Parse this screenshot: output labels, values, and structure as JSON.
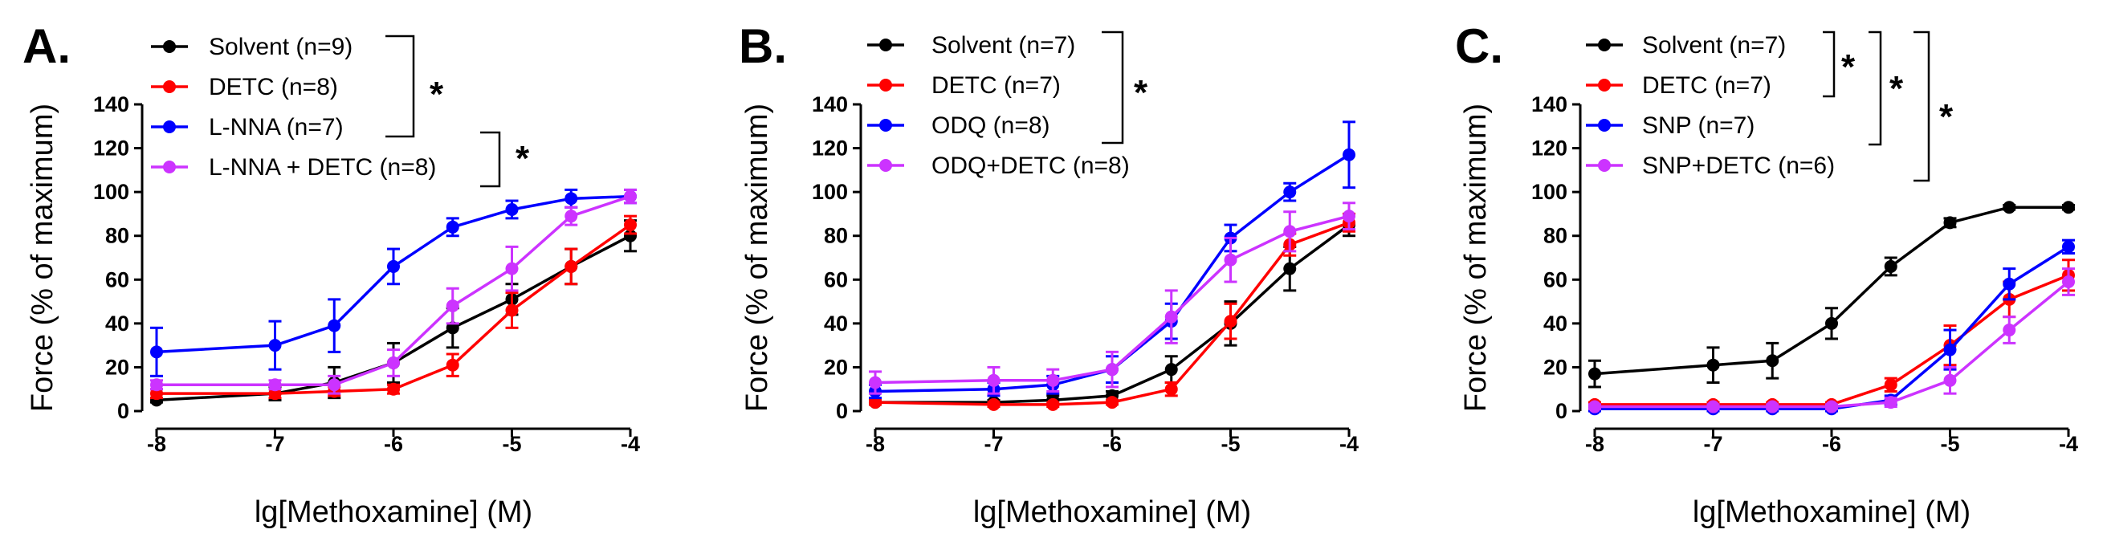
{
  "chart_data": [
    {
      "type": "line",
      "panel": "A.",
      "xlabel": "lg[Methoxamine] (M)",
      "ylabel": "Force (% of maximum)",
      "xlim": [
        -8,
        -4
      ],
      "ylim": [
        0,
        140
      ],
      "xticks": [
        "-8",
        "-7",
        "-6",
        "-5",
        "-4"
      ],
      "yticks": [
        "0",
        "20",
        "40",
        "60",
        "80",
        "100",
        "120",
        "140"
      ],
      "x": [
        -8,
        -7,
        -6.5,
        -6,
        -5.5,
        -5,
        -4.5,
        -4
      ],
      "series": [
        {
          "name": "Solvent (n=9)",
          "color": "#000000",
          "values": [
            5,
            8,
            13,
            22,
            38,
            51,
            66,
            80
          ],
          "errors": [
            1,
            3,
            7,
            9,
            9,
            7,
            8,
            7
          ]
        },
        {
          "name": "DETC (n=8)",
          "color": "#ff0000",
          "values": [
            8,
            8,
            9,
            10,
            21,
            46,
            66,
            85
          ],
          "errors": [
            2,
            2,
            2,
            2,
            5,
            8,
            8,
            4
          ]
        },
        {
          "name": "L-NNA  (n=7)",
          "color": "#0000ff",
          "values": [
            27,
            30,
            39,
            66,
            84,
            92,
            97,
            98
          ],
          "errors": [
            11,
            11,
            12,
            8,
            4,
            4,
            4,
            3
          ]
        },
        {
          "name": "L-NNA + DETC (n=8)",
          "color": "#cc33ff",
          "values": [
            12,
            12,
            12,
            22,
            48,
            65,
            89,
            98
          ],
          "errors": [
            2,
            2,
            4,
            6,
            8,
            10,
            4,
            3
          ]
        }
      ],
      "significance": [
        "*",
        "*"
      ]
    },
    {
      "type": "line",
      "panel": "B.",
      "xlabel": "lg[Methoxamine] (M)",
      "ylabel": "Force (% of maximum)",
      "xlim": [
        -8,
        -4
      ],
      "ylim": [
        0,
        140
      ],
      "xticks": [
        "-8",
        "-7",
        "-6",
        "-5",
        "-4"
      ],
      "yticks": [
        "0",
        "20",
        "40",
        "60",
        "80",
        "100",
        "120",
        "140"
      ],
      "x": [
        -8,
        -7,
        -6.5,
        -6,
        -5.5,
        -5,
        -4.5,
        -4
      ],
      "series": [
        {
          "name": "Solvent (n=7)",
          "color": "#000000",
          "values": [
            4,
            4,
            5,
            7,
            19,
            40,
            65,
            85
          ],
          "errors": [
            1,
            1,
            2,
            2,
            6,
            10,
            10,
            5
          ]
        },
        {
          "name": "DETC (n=7)",
          "color": "#ff0000",
          "values": [
            4,
            3,
            3,
            4,
            10,
            41,
            76,
            86
          ],
          "errors": [
            1,
            1,
            1,
            1,
            3,
            8,
            5,
            4
          ]
        },
        {
          "name": "ODQ (n=8)",
          "color": "#0000ff",
          "values": [
            9,
            10,
            12,
            19,
            41,
            79,
            100,
            117
          ],
          "errors": [
            3,
            3,
            4,
            6,
            8,
            6,
            4,
            15
          ]
        },
        {
          "name": "ODQ+DETC (n=8)",
          "color": "#cc33ff",
          "values": [
            13,
            14,
            14,
            19,
            43,
            69,
            82,
            89
          ],
          "errors": [
            5,
            6,
            5,
            8,
            12,
            10,
            9,
            6
          ]
        }
      ],
      "significance": [
        "*"
      ]
    },
    {
      "type": "line",
      "panel": "C.",
      "xlabel": "lg[Methoxamine] (M)",
      "ylabel": "Force (% of maximum)",
      "xlim": [
        -8,
        -4
      ],
      "ylim": [
        0,
        140
      ],
      "xticks": [
        "-8",
        "-7",
        "-6",
        "-5",
        "-4"
      ],
      "yticks": [
        "0",
        "20",
        "40",
        "60",
        "80",
        "100",
        "120",
        "140"
      ],
      "x": [
        -8,
        -7,
        -6.5,
        -6,
        -5.5,
        -5,
        -4.5,
        -4
      ],
      "series": [
        {
          "name": "Solvent (n=7)",
          "color": "#000000",
          "values": [
            17,
            21,
            23,
            40,
            66,
            86,
            93,
            93
          ],
          "errors": [
            6,
            8,
            8,
            7,
            4,
            2,
            1,
            1
          ]
        },
        {
          "name": "DETC (n=7)",
          "color": "#ff0000",
          "values": [
            3,
            3,
            3,
            3,
            12,
            30,
            51,
            62
          ],
          "errors": [
            1,
            1,
            1,
            1,
            3,
            9,
            8,
            7
          ]
        },
        {
          "name": "SNP (n=7)",
          "color": "#0000ff",
          "values": [
            1,
            1,
            1,
            1,
            5,
            28,
            58,
            75
          ],
          "errors": [
            1,
            1,
            1,
            1,
            2,
            9,
            7,
            3
          ]
        },
        {
          "name": "SNP+DETC (n=6)",
          "color": "#cc33ff",
          "values": [
            2,
            2,
            2,
            2,
            4,
            14,
            37,
            59
          ],
          "errors": [
            1,
            1,
            1,
            1,
            2,
            6,
            6,
            6
          ]
        }
      ],
      "significance": [
        "*",
        "*",
        "*"
      ]
    }
  ]
}
